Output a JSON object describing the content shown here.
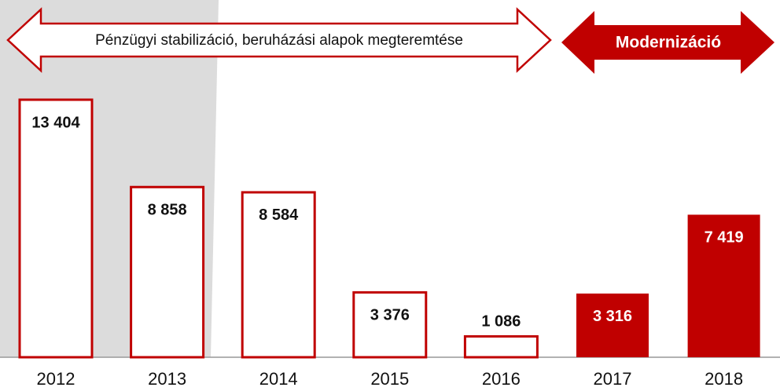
{
  "chart_data": {
    "type": "bar",
    "categories": [
      "2012",
      "2013",
      "2014",
      "2015",
      "2016",
      "2017",
      "2018"
    ],
    "values": [
      13404,
      8858,
      8584,
      3376,
      1086,
      3316,
      7419
    ],
    "value_labels": [
      "13 404",
      "8 858",
      "8 584",
      "3 376",
      "1 086",
      "3 316",
      "7 419"
    ],
    "color": "#c00000",
    "bar_styles": [
      "outline",
      "outline",
      "outline",
      "outline",
      "outline",
      "filled",
      "filled"
    ],
    "annotations": [
      "Pénzügyi stabilizáció, beruházási alapok megteremtése",
      "Modernizáció"
    ]
  }
}
